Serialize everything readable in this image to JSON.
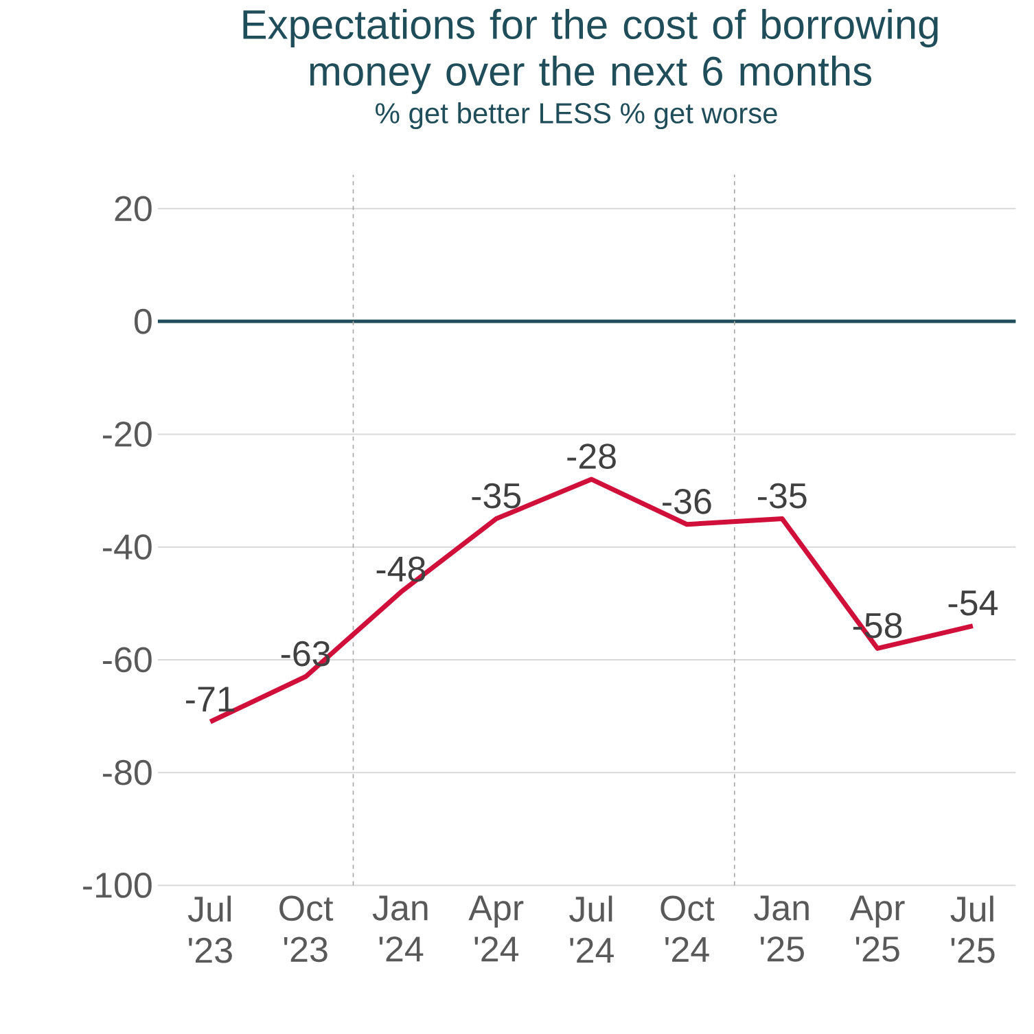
{
  "chart_data": {
    "type": "line",
    "title": "Expectations for the cost of borrowing money over the next 6 months",
    "subtitle": "% get better LESS % get worse",
    "categories": [
      "Jul '23",
      "Oct '23",
      "Jan '24",
      "Apr '24",
      "Jul '24",
      "Oct '24",
      "Jan '25",
      "Apr '25",
      "Jul '25"
    ],
    "series": [
      {
        "color": "#d0103a",
        "values": [
          -71,
          -63,
          -48,
          -35,
          -28,
          -36,
          -35,
          -58,
          -54
        ]
      }
    ],
    "ylim": [
      -100,
      20
    ],
    "yticks": [
      -100,
      -80,
      -60,
      -40,
      -20,
      0,
      20
    ],
    "grid": "y",
    "marker": "none",
    "data_labels": true,
    "ref_lines": [
      {
        "axis": "y",
        "value": 0,
        "color": "#1f4e5a",
        "line_style": "solid"
      }
    ]
  }
}
